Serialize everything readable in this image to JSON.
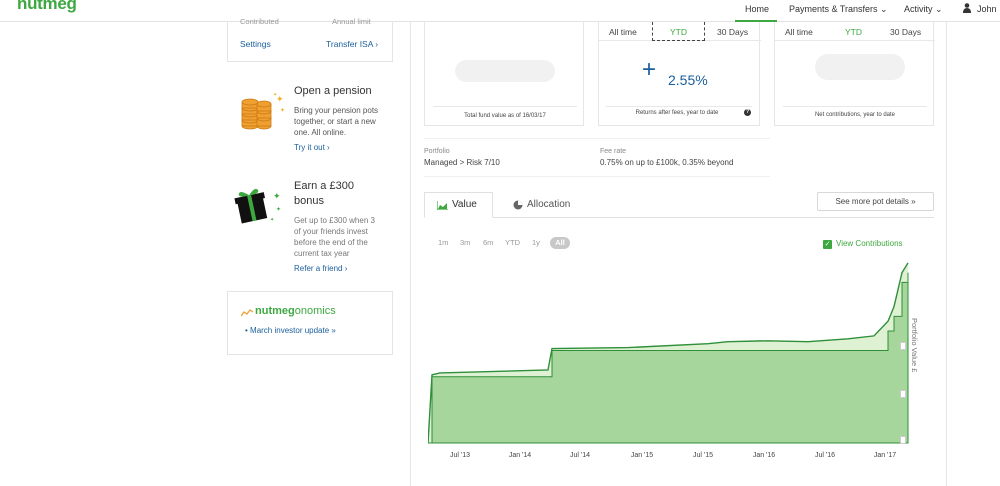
{
  "nav": {
    "logo": "nutmeg",
    "items": [
      {
        "label": "Home"
      },
      {
        "label": "Payments & Transfers ⌄"
      },
      {
        "label": "Activity ⌄"
      },
      {
        "label": "John"
      }
    ],
    "user_icon": "user-icon"
  },
  "sidebar": {
    "top_card": {
      "contributed_label": "Contributed",
      "annual_limit_label": "Annual limit",
      "settings_link": "Settings",
      "transfer_link": "Transfer ISA ›"
    },
    "pension": {
      "icon": "coin-stack-icon",
      "title": "Open a pension",
      "body": [
        "Bring your pension pots",
        "together, or start a new",
        "one. All online."
      ],
      "cta": "Try it out ›"
    },
    "referral": {
      "icon": "gift-icon",
      "title": [
        "Earn a £300",
        "bonus"
      ],
      "body": [
        "Get up to £300 when 3",
        "of your friends invest",
        "before the end of the",
        "current tax year"
      ],
      "cta": "Refer a friend ›"
    },
    "nutmegonomics": {
      "brand_bold": "nutmeg",
      "brand_light": "onomics",
      "link": "• March investor update »"
    }
  },
  "stats": {
    "fund_value": {
      "caption": "Total fund value as of 16/03/17"
    },
    "returns": {
      "segments": [
        "All time",
        "YTD",
        "30 Days"
      ],
      "selected": "YTD",
      "sign": "+",
      "value": "2.55%",
      "caption": "Returns after fees, year to date",
      "help_icon": "help-icon"
    },
    "contributions": {
      "segments": [
        "All time",
        "YTD",
        "30 Days"
      ],
      "selected": "YTD",
      "caption": "Net contributions, year to date"
    }
  },
  "portfolio": {
    "label": "Portfolio",
    "value": "Managed > Risk 7/10",
    "fee_label": "Fee rate",
    "fee_value": "0.75% on up to £100k, 0.35% beyond"
  },
  "tabs": {
    "value": "Value",
    "allocation": "Allocation",
    "see_more": "See more pot details »"
  },
  "ranges": [
    "1m",
    "3m",
    "6m",
    "YTD",
    "1y",
    "All"
  ],
  "selected_range": "All",
  "view_contributions": "View Contributions",
  "accent": "#3da83f",
  "chart_data": {
    "type": "area",
    "ylabel": "Portfolio Value £",
    "x_ticks": [
      "Jul '13",
      "Jan '14",
      "Jul '14",
      "Jan '15",
      "Jul '15",
      "Jan '16",
      "Jul '16",
      "Jan '17"
    ],
    "series": [
      {
        "values": [
          0,
          0.7,
          0.72,
          0.75,
          0.97,
          0.98,
          1.02,
          1.04,
          1.05,
          1.04,
          1.07,
          1.1,
          1.25,
          1.4,
          1.75,
          1.85
        ]
      },
      {
        "values": [
          0,
          0.68,
          0.68,
          0.68,
          0.95,
          0.95,
          0.95,
          0.95,
          0.95,
          0.95,
          0.95,
          0.95,
          1.15,
          1.3,
          1.65,
          1.75
        ]
      }
    ],
    "grid": false
  }
}
